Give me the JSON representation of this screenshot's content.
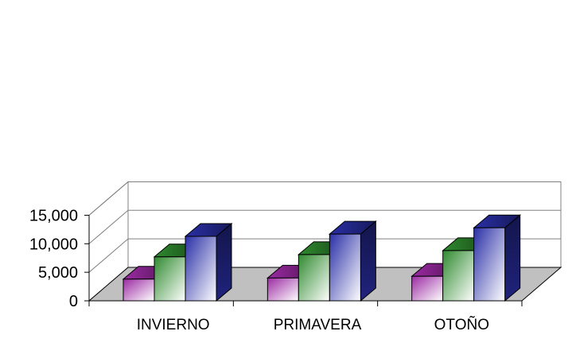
{
  "chart_data": {
    "type": "bar",
    "style": "3d-clustered-column",
    "categories": [
      "INVIERNO",
      "PRIMAVERA",
      "OTOÑO"
    ],
    "series": [
      {
        "values": [
          3800,
          4000,
          4300
        ],
        "color": "#9b2aa3"
      },
      {
        "values": [
          7700,
          8100,
          8800
        ],
        "color": "#2f8a2f"
      },
      {
        "values": [
          11300,
          11700,
          12800
        ],
        "color": "#2a2fa6"
      }
    ],
    "yticks": [
      "0",
      "5,000",
      "10,000",
      "15,000"
    ],
    "ylim": [
      0,
      15000
    ],
    "grid": true,
    "floor_color": "#c0c0c0",
    "wall_color": "#ffffff",
    "title": "",
    "xlabel": "",
    "ylabel": ""
  }
}
